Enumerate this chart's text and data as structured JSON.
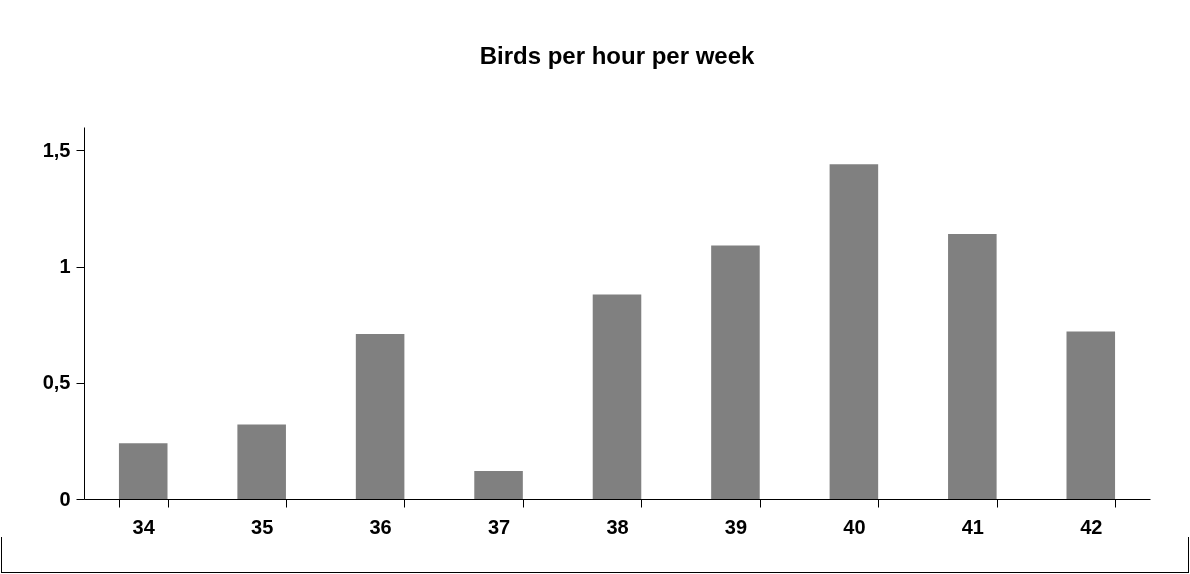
{
  "chart_data": {
    "type": "bar",
    "title": "Birds per hour per week",
    "categories": [
      "34",
      "35",
      "36",
      "37",
      "38",
      "39",
      "40",
      "41",
      "42"
    ],
    "values": [
      0.24,
      0.32,
      0.71,
      0.12,
      0.88,
      1.09,
      1.44,
      1.14,
      0.72
    ],
    "color": "#808080",
    "ylim": [
      0,
      1.6
    ],
    "yticks": [
      0,
      {
        "value": 0.5,
        "label": "0,5"
      },
      1,
      {
        "value": 1.5,
        "label": "1,5"
      }
    ],
    "grid": false
  }
}
